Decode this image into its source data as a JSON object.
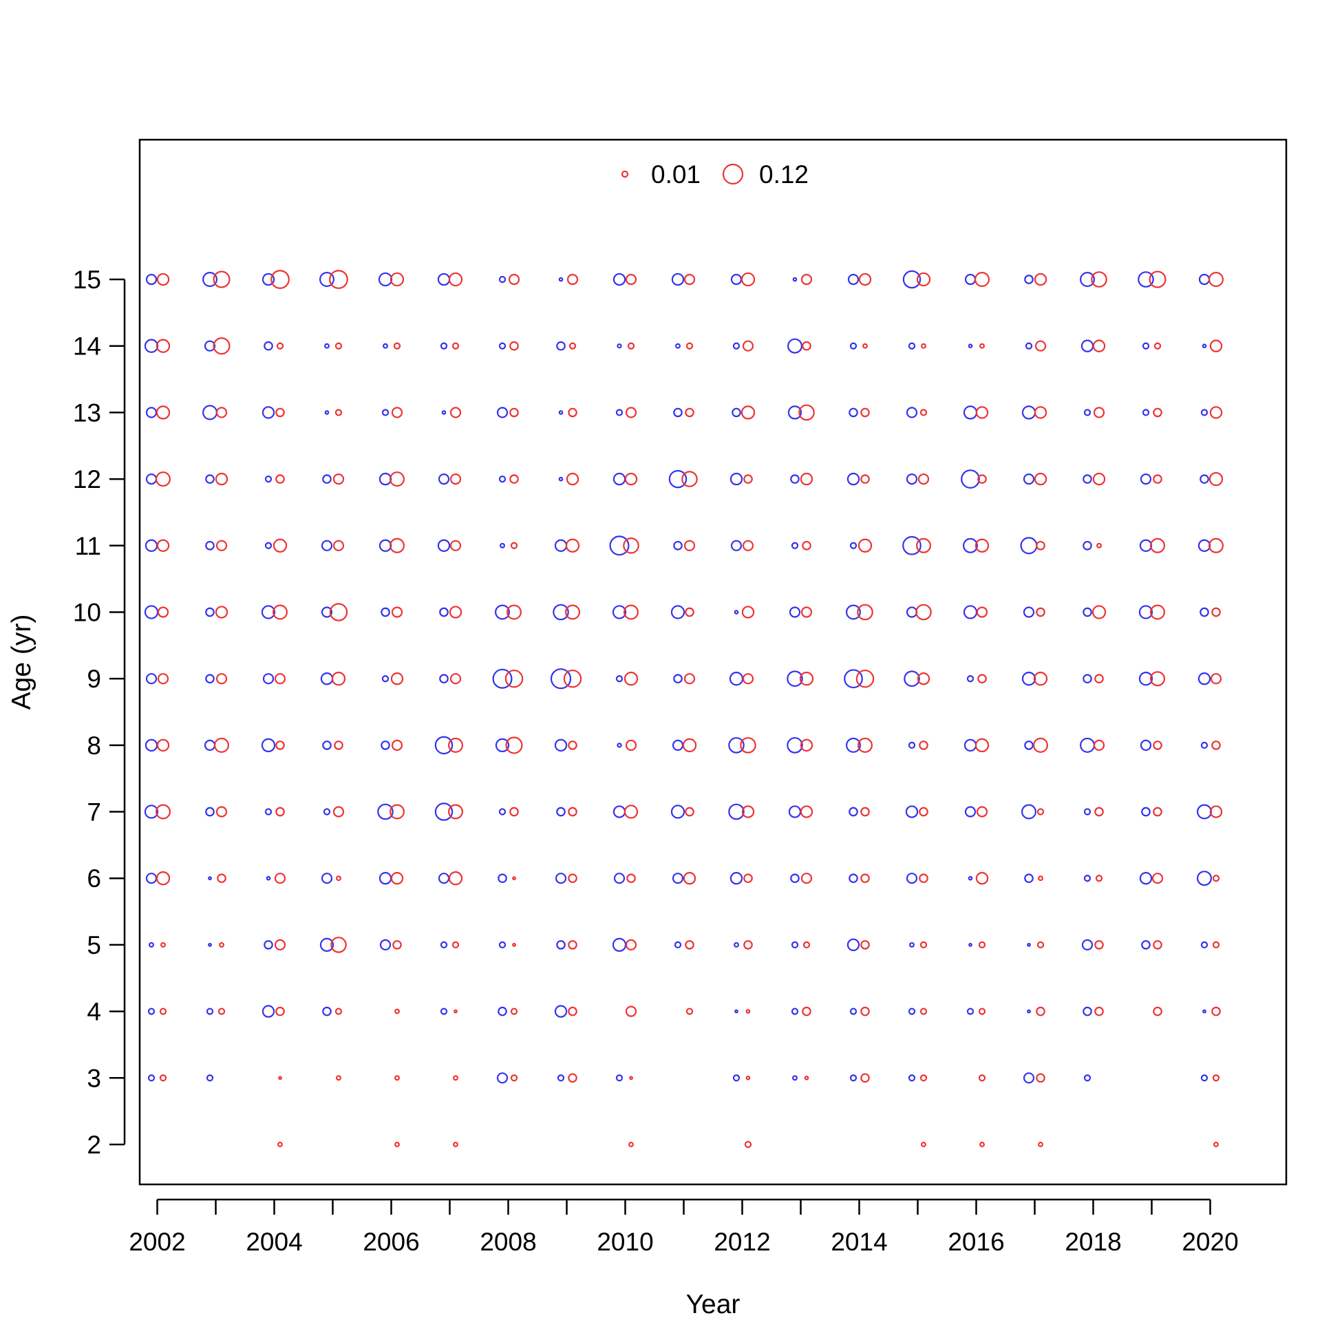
{
  "chart_data": {
    "type": "scatter",
    "subtype": "bubble",
    "title": "",
    "xlabel": "Year",
    "ylabel": "Age (yr)",
    "xlim": [
      2001.7,
      2021.3
    ],
    "ylim": [
      1.4,
      17.1
    ],
    "x_ticks": [
      2002,
      2003,
      2004,
      2005,
      2006,
      2007,
      2008,
      2009,
      2010,
      2011,
      2012,
      2013,
      2014,
      2015,
      2016,
      2017,
      2018,
      2019,
      2020
    ],
    "x_tick_labels": [
      "2002",
      "",
      "2004",
      "",
      "2006",
      "",
      "2008",
      "",
      "2010",
      "",
      "2012",
      "",
      "2014",
      "",
      "2016",
      "",
      "2018",
      "",
      "2020"
    ],
    "y_ticks": [
      2,
      3,
      4,
      5,
      6,
      7,
      8,
      9,
      10,
      11,
      12,
      13,
      14,
      15
    ],
    "y_tick_labels": [
      "2",
      "3",
      "4",
      "5",
      "6",
      "7",
      "8",
      "9",
      "10",
      "11",
      "12",
      "13",
      "14",
      "15"
    ],
    "grid": false,
    "legend": {
      "placement": "top-center",
      "entries": [
        {
          "label": "0.01",
          "value": 0.01
        },
        {
          "label": "0.12",
          "value": 0.12
        }
      ]
    },
    "colors": {
      "series_a": "#3333ee",
      "series_b": "#ee3333",
      "frame": "#000000"
    },
    "years": [
      2002,
      2003,
      2004,
      2005,
      2006,
      2007,
      2008,
      2009,
      2010,
      2011,
      2012,
      2013,
      2014,
      2015,
      2016,
      2017,
      2018,
      2019,
      2020
    ],
    "ages": [
      2,
      3,
      4,
      5,
      6,
      7,
      8,
      9,
      10,
      11,
      12,
      13,
      14,
      15
    ],
    "series": [
      {
        "color": "#3333ee",
        "x_offset": -0.1,
        "values": [
          [
            0,
            0.01,
            0.01,
            0.005,
            0.03,
            0.05,
            0.04,
            0.03,
            0.05,
            0.04,
            0.03,
            0.03,
            0.05,
            0.03
          ],
          [
            0,
            0.01,
            0.01,
            0.002,
            0.002,
            0.02,
            0.03,
            0.02,
            0.02,
            0.02,
            0.02,
            0.06,
            0.03,
            0.06
          ],
          [
            0,
            0,
            0.04,
            0.02,
            0.003,
            0.01,
            0.05,
            0.03,
            0.05,
            0.01,
            0.01,
            0.04,
            0.02,
            0.04
          ],
          [
            0,
            0,
            0.02,
            0.05,
            0.03,
            0.01,
            0.02,
            0.04,
            0.03,
            0.03,
            0.02,
            0.003,
            0.005,
            0.06
          ],
          [
            0,
            0,
            0,
            0.03,
            0.04,
            0.07,
            0.02,
            0.01,
            0.02,
            0.04,
            0.04,
            0.01,
            0.005,
            0.05
          ],
          [
            0,
            0,
            0.01,
            0.01,
            0.03,
            0.09,
            0.09,
            0.02,
            0.02,
            0.04,
            0.03,
            0.003,
            0.01,
            0.04
          ],
          [
            0,
            0.03,
            0.02,
            0.01,
            0.02,
            0.01,
            0.05,
            0.11,
            0.06,
            0.005,
            0.01,
            0.03,
            0.01,
            0.01
          ],
          [
            0,
            0.01,
            0.04,
            0.02,
            0.03,
            0.02,
            0.04,
            0.12,
            0.07,
            0.04,
            0.003,
            0.003,
            0.02,
            0.003
          ],
          [
            0,
            0.01,
            0,
            0.05,
            0.03,
            0.04,
            0.004,
            0.01,
            0.05,
            0.11,
            0.04,
            0.01,
            0.004,
            0.04
          ],
          [
            0,
            0,
            0,
            0.01,
            0.03,
            0.05,
            0.03,
            0.02,
            0.05,
            0.02,
            0.09,
            0.02,
            0.005,
            0.04
          ],
          [
            0,
            0.01,
            0.002,
            0.005,
            0.04,
            0.07,
            0.07,
            0.05,
            0.003,
            0.03,
            0.04,
            0.02,
            0.01,
            0.03
          ],
          [
            0,
            0.005,
            0.01,
            0.01,
            0.02,
            0.04,
            0.07,
            0.07,
            0.03,
            0.01,
            0.02,
            0.05,
            0.06,
            0.003
          ],
          [
            0,
            0.01,
            0.01,
            0.04,
            0.02,
            0.02,
            0.06,
            0.1,
            0.06,
            0.01,
            0.04,
            0.02,
            0.01,
            0.03
          ],
          [
            0,
            0.01,
            0.01,
            0.005,
            0.03,
            0.04,
            0.01,
            0.07,
            0.03,
            0.1,
            0.03,
            0.03,
            0.01,
            0.09
          ],
          [
            0,
            0,
            0.01,
            0.002,
            0.003,
            0.03,
            0.04,
            0.01,
            0.05,
            0.06,
            0.1,
            0.05,
            0.003,
            0.03
          ],
          [
            0,
            0.03,
            0.002,
            0.002,
            0.02,
            0.06,
            0.02,
            0.05,
            0.03,
            0.08,
            0.03,
            0.05,
            0.01,
            0.02
          ],
          [
            0,
            0.01,
            0.02,
            0.03,
            0.01,
            0.01,
            0.06,
            0.02,
            0.02,
            0.02,
            0.02,
            0.01,
            0.04,
            0.06
          ],
          [
            0,
            0,
            0,
            0.02,
            0.04,
            0.02,
            0.03,
            0.05,
            0.05,
            0.04,
            0.03,
            0.01,
            0.01,
            0.07
          ],
          [
            0,
            0.01,
            0.002,
            0.01,
            0.06,
            0.06,
            0.01,
            0.04,
            0.02,
            0.04,
            0.02,
            0.01,
            0.003,
            0.03
          ]
        ]
      },
      {
        "color": "#ee3333",
        "x_offset": 0.1,
        "values": [
          [
            0,
            0.01,
            0.01,
            0.005,
            0.05,
            0.06,
            0.04,
            0.03,
            0.03,
            0.04,
            0.06,
            0.05,
            0.05,
            0.04
          ],
          [
            0,
            0,
            0.01,
            0.005,
            0.02,
            0.03,
            0.06,
            0.03,
            0.04,
            0.03,
            0.04,
            0.03,
            0.08,
            0.08
          ],
          [
            0.005,
            0.002,
            0.02,
            0.03,
            0.03,
            0.02,
            0.02,
            0.03,
            0.06,
            0.05,
            0.02,
            0.02,
            0.01,
            0.1
          ],
          [
            0,
            0.005,
            0.01,
            0.07,
            0.005,
            0.03,
            0.02,
            0.05,
            0.09,
            0.03,
            0.03,
            0.01,
            0.01,
            0.1
          ],
          [
            0.005,
            0.005,
            0.005,
            0.02,
            0.04,
            0.06,
            0.03,
            0.04,
            0.03,
            0.06,
            0.06,
            0.03,
            0.01,
            0.05
          ],
          [
            0.005,
            0.005,
            0.002,
            0.01,
            0.05,
            0.06,
            0.06,
            0.03,
            0.04,
            0.03,
            0.03,
            0.03,
            0.01,
            0.05
          ],
          [
            0,
            0.01,
            0.01,
            0.002,
            0.002,
            0.02,
            0.08,
            0.09,
            0.06,
            0.01,
            0.02,
            0.02,
            0.02,
            0.03
          ],
          [
            0,
            0.02,
            0.02,
            0.02,
            0.02,
            0.02,
            0.02,
            0.09,
            0.06,
            0.05,
            0.04,
            0.02,
            0.01,
            0.03
          ],
          [
            0.005,
            0.002,
            0.03,
            0.03,
            0.02,
            0.05,
            0.03,
            0.05,
            0.06,
            0.07,
            0.04,
            0.03,
            0.01,
            0.03
          ],
          [
            0,
            0,
            0.01,
            0.02,
            0.04,
            0.02,
            0.05,
            0.03,
            0.02,
            0.03,
            0.07,
            0.02,
            0.01,
            0.03
          ],
          [
            0.01,
            0.003,
            0.003,
            0.02,
            0.02,
            0.04,
            0.07,
            0.03,
            0.04,
            0.03,
            0.02,
            0.05,
            0.03,
            0.05
          ],
          [
            0,
            0.003,
            0.02,
            0.01,
            0.03,
            0.04,
            0.04,
            0.05,
            0.03,
            0.02,
            0.04,
            0.07,
            0.02,
            0.03
          ],
          [
            0,
            0.02,
            0.02,
            0.02,
            0.02,
            0.02,
            0.06,
            0.09,
            0.07,
            0.05,
            0.02,
            0.02,
            0.005,
            0.04
          ],
          [
            0.005,
            0.01,
            0.01,
            0.01,
            0.02,
            0.02,
            0.02,
            0.04,
            0.07,
            0.06,
            0.03,
            0.01,
            0.005,
            0.05
          ],
          [
            0.005,
            0.01,
            0.01,
            0.01,
            0.04,
            0.03,
            0.05,
            0.02,
            0.03,
            0.05,
            0.02,
            0.04,
            0.005,
            0.06
          ],
          [
            0.005,
            0.02,
            0.02,
            0.01,
            0.005,
            0.01,
            0.06,
            0.05,
            0.02,
            0.02,
            0.04,
            0.04,
            0.03,
            0.04
          ],
          [
            0,
            0,
            0.02,
            0.02,
            0.01,
            0.02,
            0.03,
            0.02,
            0.05,
            0.005,
            0.04,
            0.03,
            0.04,
            0.07
          ],
          [
            0,
            0,
            0.02,
            0.02,
            0.03,
            0.02,
            0.02,
            0.06,
            0.06,
            0.06,
            0.02,
            0.02,
            0.01,
            0.08
          ],
          [
            0.005,
            0.01,
            0.02,
            0.01,
            0.01,
            0.04,
            0.02,
            0.03,
            0.02,
            0.06,
            0.05,
            0.04,
            0.04,
            0.06
          ]
        ]
      }
    ]
  }
}
